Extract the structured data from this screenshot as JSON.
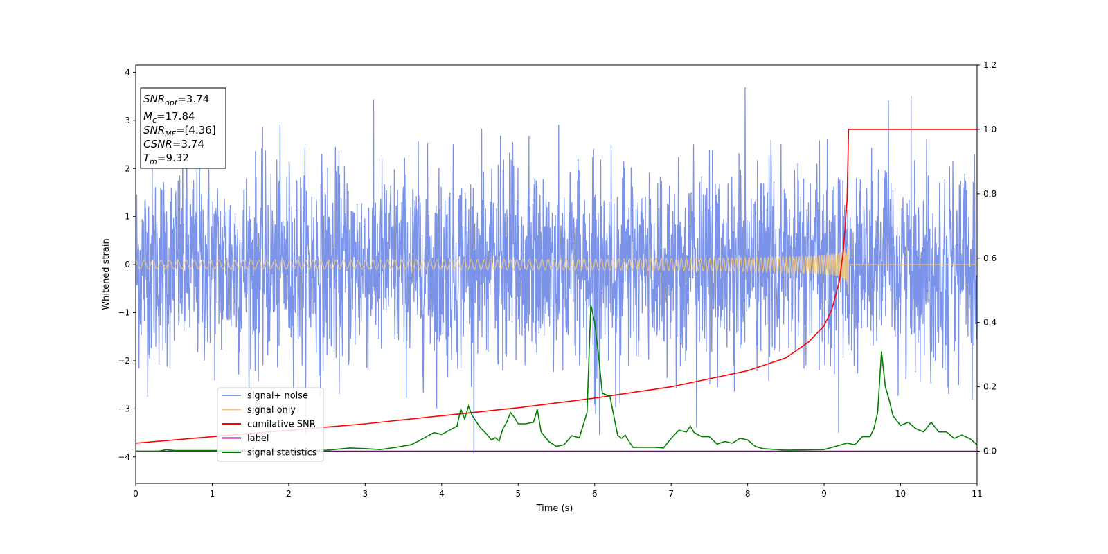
{
  "chart_data": {
    "type": "line",
    "xlabel": "Time (s)",
    "ylabel": "Whitened strain",
    "xlim": [
      0,
      11
    ],
    "ylim": [
      -4.55,
      4.15
    ],
    "ylim_right": [
      -0.1,
      1.2
    ],
    "x_ticks": [
      "0",
      "1",
      "2",
      "3",
      "4",
      "5",
      "6",
      "7",
      "8",
      "9",
      "10",
      "11"
    ],
    "y_ticks": [
      "−4",
      "−3",
      "−2",
      "−1",
      "0",
      "1",
      "2",
      "3",
      "4"
    ],
    "y_ticks_right": [
      "0.0",
      "0.2",
      "0.4",
      "0.6",
      "0.8",
      "1.0",
      "1.2"
    ],
    "grid": false,
    "legend_placement": "lower-left",
    "annotation": {
      "lines": [
        {
          "main": "SNR",
          "sub": "opt",
          "value": "=3.74"
        },
        {
          "main": "M",
          "sub": "c",
          "value": "=17.84"
        },
        {
          "main": "SNR",
          "sub": "MF",
          "value": "=[4.36]"
        },
        {
          "main": "CSNR",
          "sub": "",
          "value": "=3.74"
        },
        {
          "main": "T",
          "sub": "m",
          "value": "=9.32"
        }
      ]
    },
    "series": [
      {
        "name": "signal+ noise",
        "color": "#7b93e8",
        "axis": "left",
        "kind": "noise",
        "x_range": [
          0,
          11
        ],
        "typical_amplitude": 1.05,
        "max": 3.74,
        "min": -4.17
      },
      {
        "name": "signal only",
        "color": "#f5c878",
        "axis": "left",
        "kind": "chirp",
        "x_range": [
          0,
          9.32
        ],
        "merger_time": 9.32,
        "peak_amplitude": 0.65
      },
      {
        "name": "cumilative SNR",
        "color": "#ff0000",
        "axis": "right",
        "x": [
          0,
          1,
          2,
          3,
          4,
          5,
          6,
          7,
          8,
          8.5,
          8.8,
          9.0,
          9.1,
          9.2,
          9.25,
          9.3,
          9.32,
          9.5,
          10,
          11
        ],
        "y": [
          0.025,
          0.045,
          0.065,
          0.085,
          0.11,
          0.135,
          0.165,
          0.2,
          0.25,
          0.29,
          0.34,
          0.39,
          0.44,
          0.53,
          0.62,
          0.78,
          1.0,
          1.0,
          1.0,
          1.0
        ]
      },
      {
        "name": "label",
        "color": "#800080",
        "axis": "right",
        "x": [
          0,
          11
        ],
        "y": [
          0,
          0
        ]
      },
      {
        "name": "signal statistics",
        "color": "#008000",
        "axis": "right",
        "x": [
          0,
          0.3,
          0.4,
          0.5,
          1.0,
          1.5,
          2.0,
          2.5,
          2.8,
          3.0,
          3.2,
          3.4,
          3.6,
          3.7,
          3.8,
          3.9,
          4.0,
          4.1,
          4.2,
          4.25,
          4.3,
          4.35,
          4.4,
          4.5,
          4.6,
          4.65,
          4.7,
          4.75,
          4.8,
          4.85,
          4.9,
          4.95,
          5.0,
          5.1,
          5.2,
          5.25,
          5.3,
          5.4,
          5.5,
          5.6,
          5.7,
          5.8,
          5.9,
          5.95,
          6.0,
          6.05,
          6.1,
          6.2,
          6.3,
          6.35,
          6.4,
          6.45,
          6.5,
          6.6,
          6.8,
          6.9,
          7.0,
          7.1,
          7.2,
          7.25,
          7.3,
          7.4,
          7.5,
          7.6,
          7.7,
          7.8,
          7.9,
          8.0,
          8.1,
          8.2,
          8.5,
          9.0,
          9.3,
          9.4,
          9.5,
          9.6,
          9.65,
          9.7,
          9.75,
          9.8,
          9.85,
          9.9,
          10.0,
          10.1,
          10.2,
          10.3,
          10.4,
          10.5,
          10.6,
          10.7,
          10.8,
          10.9,
          11.0
        ],
        "y": [
          0,
          0.0,
          0.005,
          0.002,
          0.002,
          0.002,
          0.002,
          0.003,
          0.01,
          0.008,
          0.005,
          0.012,
          0.02,
          0.032,
          0.045,
          0.058,
          0.052,
          0.065,
          0.078,
          0.13,
          0.1,
          0.14,
          0.11,
          0.075,
          0.05,
          0.035,
          0.042,
          0.032,
          0.07,
          0.09,
          0.12,
          0.105,
          0.085,
          0.085,
          0.09,
          0.13,
          0.06,
          0.03,
          0.015,
          0.02,
          0.048,
          0.042,
          0.12,
          0.455,
          0.4,
          0.3,
          0.18,
          0.17,
          0.05,
          0.04,
          0.05,
          0.03,
          0.012,
          0.012,
          0.012,
          0.01,
          0.04,
          0.065,
          0.06,
          0.078,
          0.058,
          0.045,
          0.045,
          0.022,
          0.03,
          0.025,
          0.04,
          0.035,
          0.015,
          0.008,
          0.003,
          0.005,
          0.025,
          0.02,
          0.045,
          0.045,
          0.07,
          0.12,
          0.31,
          0.2,
          0.16,
          0.11,
          0.08,
          0.09,
          0.07,
          0.06,
          0.09,
          0.06,
          0.06,
          0.04,
          0.05,
          0.04,
          0.02
        ]
      }
    ]
  }
}
